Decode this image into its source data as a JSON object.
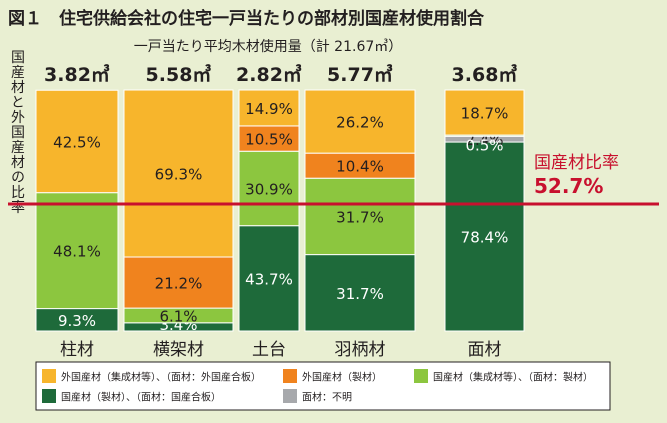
{
  "chart_data": {
    "type": "bar",
    "stacked": true,
    "title": "図１　住宅供給会社の住宅一戸当たりの部材別国産材使用割合",
    "subtitle": "一戸当たり平均木材使用量（計 21.67㎥）",
    "ylabel": "国産材と外国産材の比率",
    "categories": [
      "柱材",
      "横架材",
      "土台",
      "羽柄材",
      "面材"
    ],
    "totals": [
      "3.82㎥",
      "5.58㎥",
      "2.82㎥",
      "5.77㎥",
      "3.68㎥"
    ],
    "series": [
      {
        "name": "国産材（製材）、（面材：国産合板）",
        "color": "#1e6a3a",
        "values": [
          9.3,
          3.4,
          43.7,
          31.7,
          78.4
        ]
      },
      {
        "name": "面材：不明",
        "color": "#a7a9ac",
        "values": [
          0,
          0,
          0,
          0,
          2.4
        ]
      },
      {
        "name": "国産材（集成材等）、（面材：製材）",
        "color": "#8cc63f",
        "values": [
          48.1,
          6.1,
          30.9,
          31.7,
          0.5
        ]
      },
      {
        "name": "外国産材（製材）",
        "color": "#f0831e",
        "values": [
          0.0,
          21.2,
          10.5,
          10.4,
          0
        ]
      },
      {
        "name": "外国産材（集成材等）、（面材：外国産合板）",
        "color": "#f7b52c",
        "values": [
          42.5,
          69.3,
          14.9,
          26.2,
          18.7
        ]
      }
    ],
    "ylim": [
      0,
      100
    ],
    "reference_line": {
      "label": "国産材比率",
      "value_label": "52.7%",
      "value": 52.7,
      "color": "#c8102e"
    },
    "legend": {
      "placement": "bottom",
      "order": [
        4,
        3,
        2,
        0,
        1
      ]
    },
    "grid": false
  }
}
